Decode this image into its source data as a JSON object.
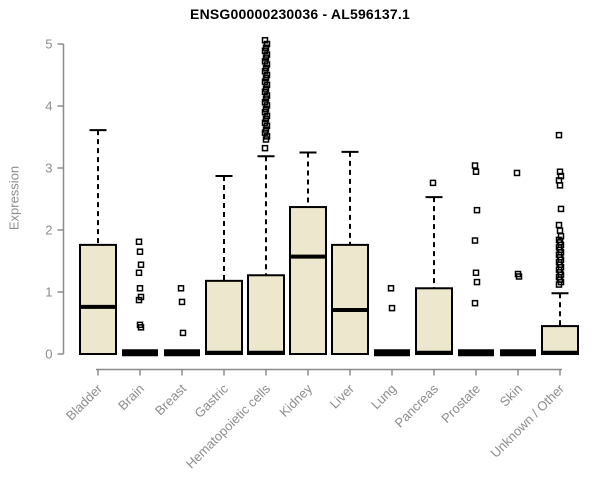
{
  "chart_data": {
    "type": "boxplot",
    "title": "ENSG00000230036 - AL596137.1",
    "ylabel": "Expression",
    "xlabel": "",
    "ylim": [
      0,
      5
    ],
    "yticks": [
      "0",
      "1",
      "2",
      "3",
      "4",
      "5"
    ],
    "grid": false,
    "legend": "none",
    "colors": {
      "box_fill": "#ece7cd",
      "box_stroke": "#000000",
      "median": "#000000",
      "whisker": "#000000",
      "outlier_stroke": "#000000",
      "axis": "#8c8c8c",
      "tick_label": "#8c8c8c",
      "title": "#000000",
      "background": "#ffffff"
    },
    "categories": [
      "Bladder",
      "Brain",
      "Breast",
      "Gastric",
      "Hematopoietic cells",
      "Kidney",
      "Liver",
      "Lung",
      "Pancreas",
      "Prostate",
      "Skin",
      "Unknown / Other"
    ],
    "boxes": [
      {
        "label": "Bladder",
        "whisker_low": 0,
        "q1": 0,
        "median": 0.76,
        "q3": 1.76,
        "whisker_high": 3.61,
        "outliers": []
      },
      {
        "label": "Brain",
        "whisker_low": 0,
        "q1": 0,
        "median": 0.02,
        "q3": 0.05,
        "whisker_high": 0.05,
        "outliers": [
          1.81,
          1.65,
          1.44,
          1.31,
          1.06,
          0.92,
          0.87,
          0.47,
          0.43
        ]
      },
      {
        "label": "Breast",
        "whisker_low": 0,
        "q1": 0,
        "median": 0.02,
        "q3": 0.05,
        "whisker_high": 0.05,
        "outliers": [
          1.06,
          0.84,
          0.34
        ]
      },
      {
        "label": "Gastric",
        "whisker_low": 0,
        "q1": 0,
        "median": 0.02,
        "q3": 1.18,
        "whisker_high": 2.87,
        "outliers": []
      },
      {
        "label": "Hematopoietic cells",
        "whisker_low": 0,
        "q1": 0,
        "median": 0.02,
        "q3": 1.27,
        "whisker_high": 3.19,
        "outliers": [
          3.32,
          3.46,
          3.51,
          3.57,
          3.62,
          3.68,
          3.73,
          3.79,
          3.84,
          3.9,
          3.95,
          4.01,
          4.06,
          4.12,
          4.17,
          4.23,
          4.28,
          4.34,
          4.39,
          4.45,
          4.5,
          4.56,
          4.61,
          4.67,
          4.72,
          4.78,
          4.83,
          4.89,
          4.94,
          5.0,
          5.06
        ]
      },
      {
        "label": "Kidney",
        "whisker_low": 0,
        "q1": 0,
        "median": 1.57,
        "q3": 2.37,
        "whisker_high": 3.25,
        "outliers": []
      },
      {
        "label": "Liver",
        "whisker_low": 0,
        "q1": 0,
        "median": 0.71,
        "q3": 1.76,
        "whisker_high": 3.26,
        "outliers": []
      },
      {
        "label": "Lung",
        "whisker_low": 0,
        "q1": 0,
        "median": 0.02,
        "q3": 0.05,
        "whisker_high": 0.05,
        "outliers": [
          1.06,
          0.74
        ]
      },
      {
        "label": "Pancreas",
        "whisker_low": 0,
        "q1": 0,
        "median": 0.02,
        "q3": 1.06,
        "whisker_high": 2.53,
        "outliers": [
          2.76
        ]
      },
      {
        "label": "Prostate",
        "whisker_low": 0,
        "q1": 0,
        "median": 0.02,
        "q3": 0.05,
        "whisker_high": 0.05,
        "outliers": [
          3.04,
          2.94,
          2.32,
          1.83,
          1.31,
          1.16,
          0.82
        ]
      },
      {
        "label": "Skin",
        "whisker_low": 0,
        "q1": 0,
        "median": 0.02,
        "q3": 0.05,
        "whisker_high": 0.05,
        "outliers": [
          2.92,
          1.29,
          1.25
        ]
      },
      {
        "label": "Unknown / Other",
        "whisker_low": 0,
        "q1": 0,
        "median": 0.02,
        "q3": 0.45,
        "whisker_high": 0.98,
        "outliers": [
          3.53,
          2.94,
          2.87,
          2.8,
          2.72,
          2.34,
          2.08,
          1.99,
          1.9,
          1.84,
          1.8,
          1.76,
          1.72,
          1.68,
          1.64,
          1.6,
          1.56,
          1.52,
          1.48,
          1.44,
          1.4,
          1.36,
          1.32,
          1.28,
          1.24,
          1.2,
          1.16,
          1.12
        ]
      }
    ]
  }
}
